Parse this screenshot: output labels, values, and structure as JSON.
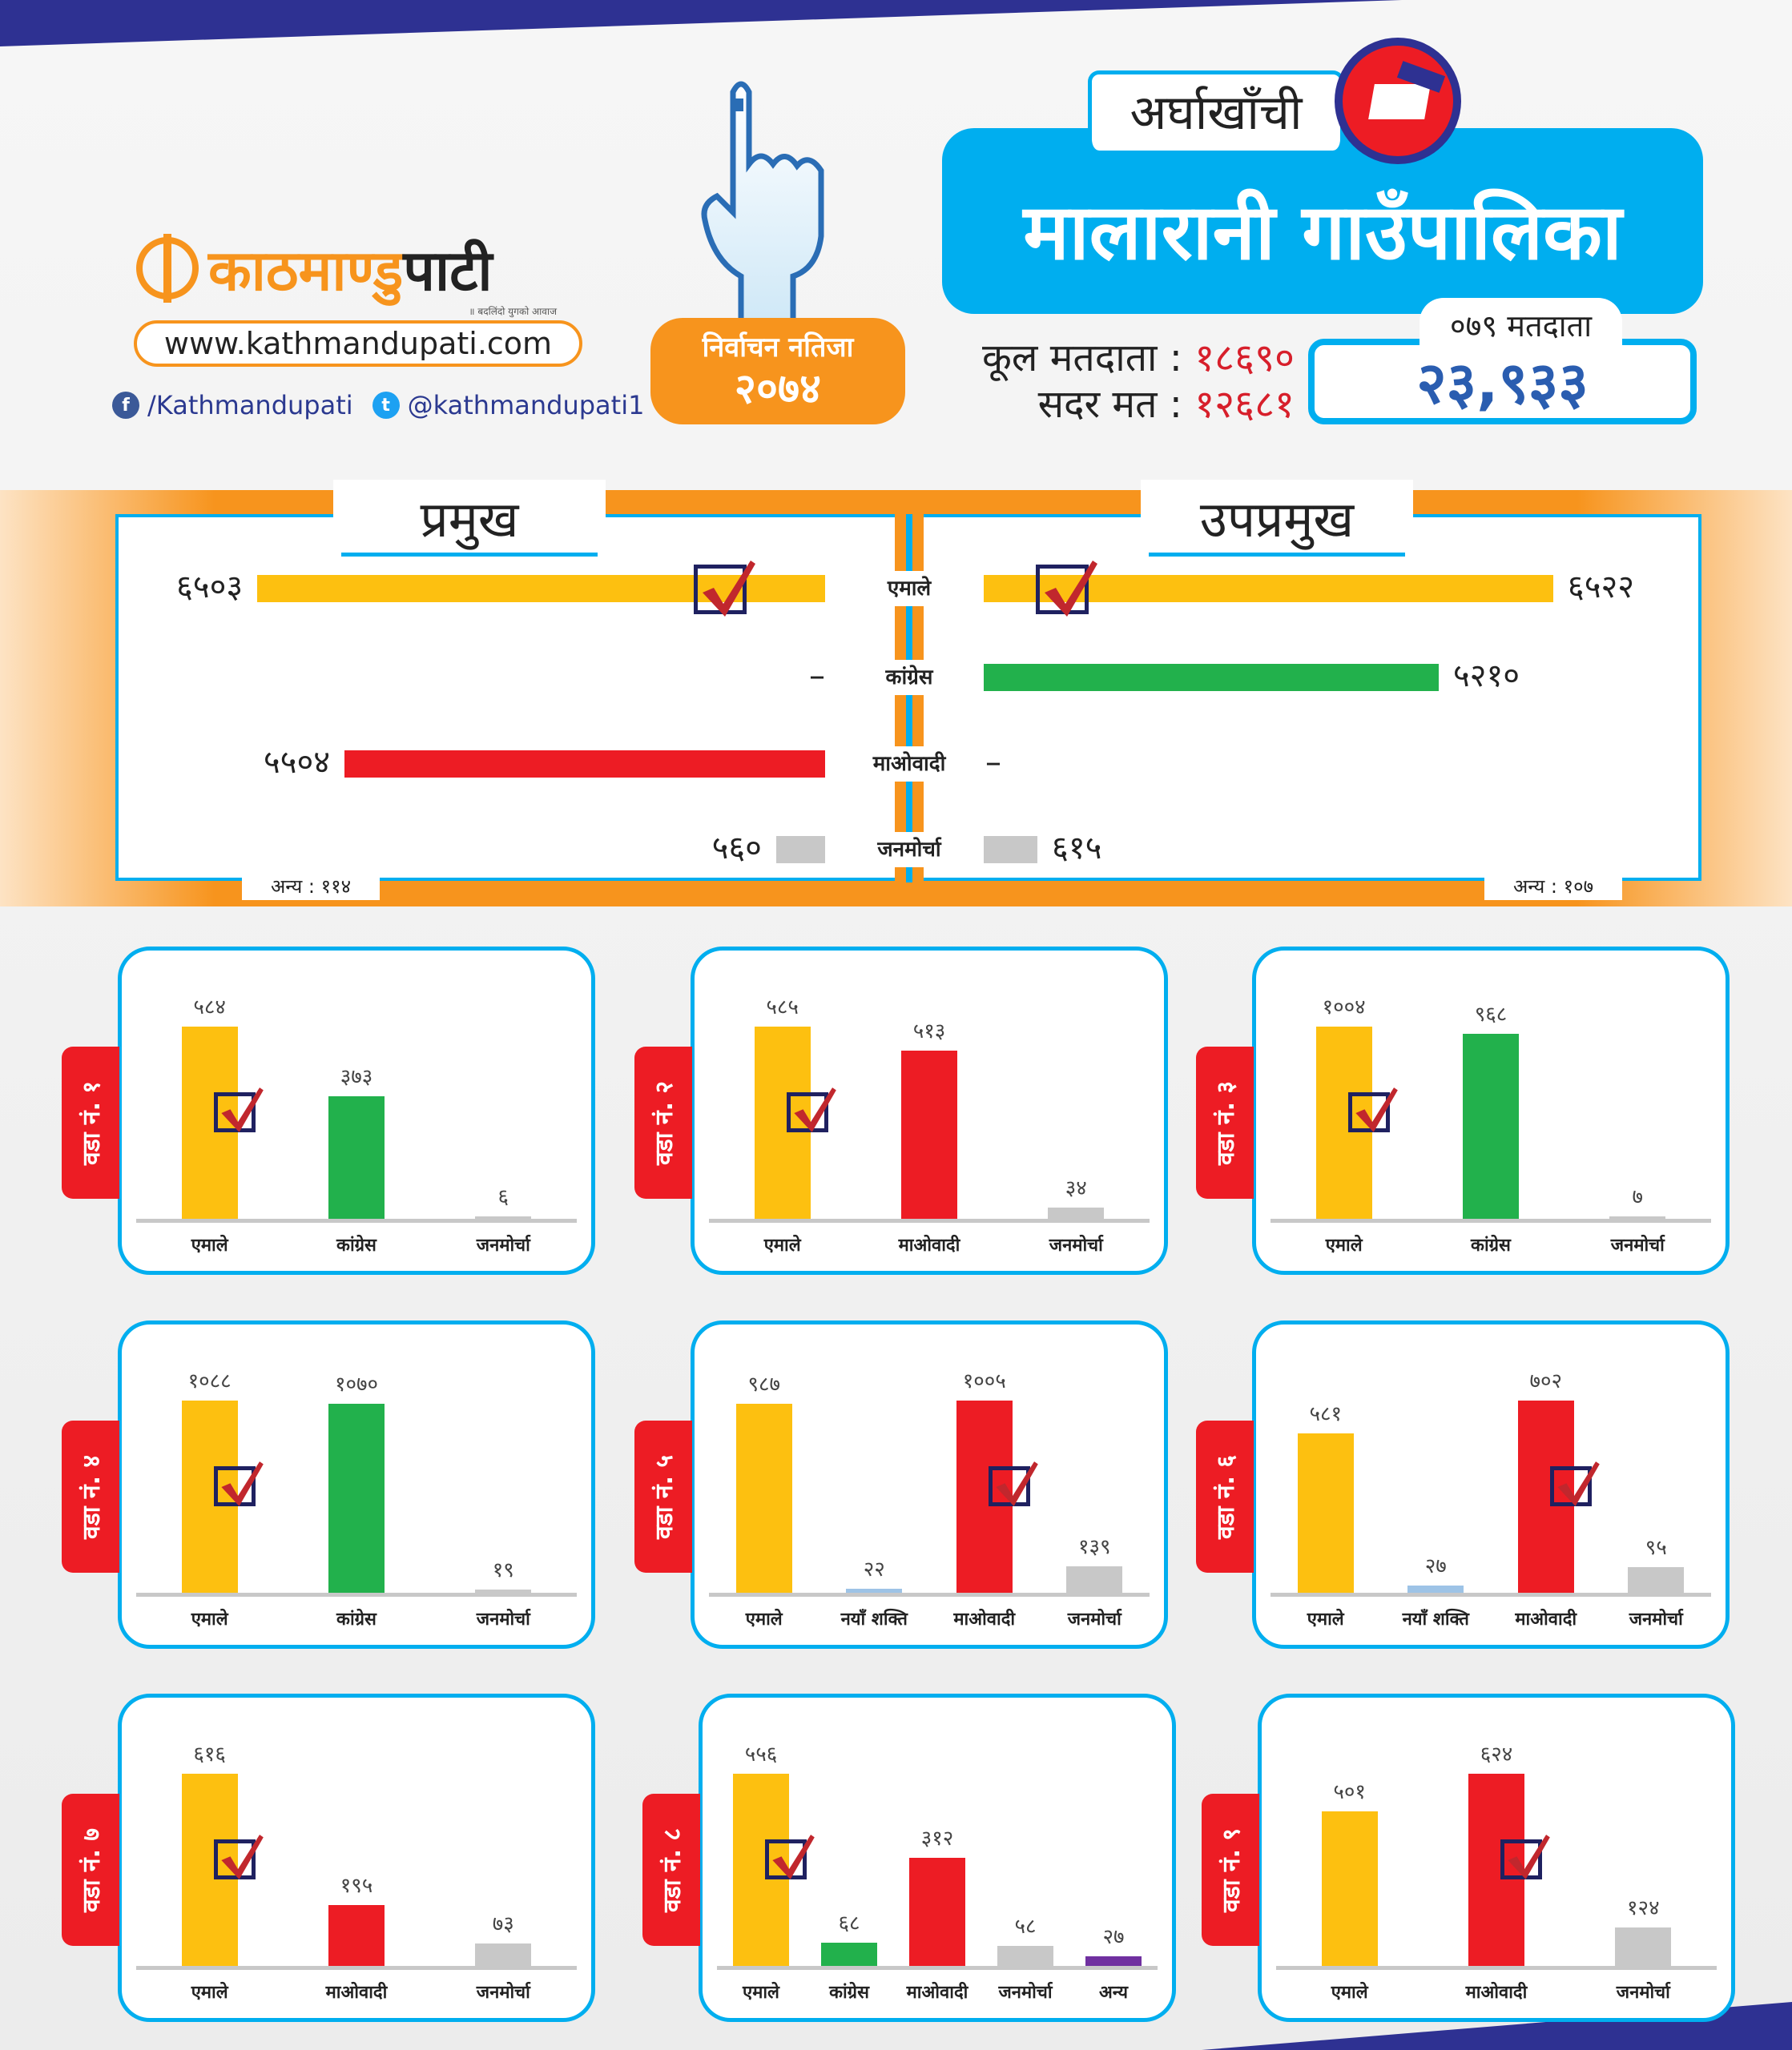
{
  "header": {
    "district": "अर्घाखाँची",
    "municipality": "मालारानी गाउँपालिका",
    "brand_part1": "काठमाण्डु",
    "brand_part2": "पाटी",
    "brand_tagline": "॥ बदलिंदो युगको आवाज",
    "website": "www.kathmandupati.com",
    "facebook": "/Kathmandupati",
    "twitter": "@kathmandupati1",
    "badge_line1": "निर्वाचन नतिजा",
    "badge_line2": "२०७४",
    "total_voters_label": "कूल मतदाता :",
    "total_voters": "१८६९०",
    "valid_votes_label": "सदर मत :",
    "valid_votes": "१२६८१",
    "voters_079_label": "०७९ मतदाता",
    "voters_079": "२३,९३३"
  },
  "colors": {
    "एमाले": "#fdc010",
    "कांग्रेस": "#22b14c",
    "माओवादी": "#ed1c24",
    "जनमोर्चा": "#c8c8c8",
    "नयाँ शक्ति": "#9dc3e6",
    "अन्य": "#7030a0",
    "accent": "#00aeef",
    "orange": "#f7941d"
  },
  "chart_data": [
    {
      "type": "bar",
      "title": "प्रमुख",
      "categories": [
        "एमाले",
        "कांग्रेस",
        "माओवादी",
        "जनमोर्चा"
      ],
      "values": [
        6503,
        null,
        5504,
        560
      ],
      "labels": [
        "६५०३",
        "–",
        "५५०४",
        "५६०"
      ],
      "winner": "एमाले",
      "other_label": "अन्य : ११४",
      "other_value": 114
    },
    {
      "type": "bar",
      "title": "उपप्रमुख",
      "categories": [
        "एमाले",
        "कांग्रेस",
        "माओवादी",
        "जनमोर्चा"
      ],
      "values": [
        6522,
        5210,
        null,
        615
      ],
      "labels": [
        "६५२२",
        "५२१०",
        "–",
        "६१५"
      ],
      "winner": "एमाले",
      "other_label": "अन्य : १०७",
      "other_value": 107
    },
    {
      "type": "bar",
      "title": "वडा नं. १",
      "categories": [
        "एमाले",
        "कांग्रेस",
        "जनमोर्चा"
      ],
      "values": [
        584,
        373,
        6
      ],
      "labels": [
        "५८४",
        "३७३",
        "६"
      ],
      "winner": "एमाले"
    },
    {
      "type": "bar",
      "title": "वडा नं. २",
      "categories": [
        "एमाले",
        "माओवादी",
        "जनमोर्चा"
      ],
      "values": [
        585,
        513,
        34
      ],
      "labels": [
        "५८५",
        "५१३",
        "३४"
      ],
      "winner": "एमाले"
    },
    {
      "type": "bar",
      "title": "वडा नं. ३",
      "categories": [
        "एमाले",
        "कांग्रेस",
        "जनमोर्चा"
      ],
      "values": [
        1004,
        968,
        7
      ],
      "labels": [
        "१००४",
        "९६८",
        "७"
      ],
      "winner": "एमाले"
    },
    {
      "type": "bar",
      "title": "वडा नं. ४",
      "categories": [
        "एमाले",
        "कांग्रेस",
        "जनमोर्चा"
      ],
      "values": [
        1088,
        1070,
        19
      ],
      "labels": [
        "१०८८",
        "१०७०",
        "१९"
      ],
      "winner": "एमाले"
    },
    {
      "type": "bar",
      "title": "वडा नं. ५",
      "categories": [
        "एमाले",
        "नयाँ शक्ति",
        "माओवादी",
        "जनमोर्चा"
      ],
      "values": [
        987,
        22,
        1005,
        139
      ],
      "labels": [
        "९८७",
        "२२",
        "१००५",
        "१३९"
      ],
      "winner": "माओवादी"
    },
    {
      "type": "bar",
      "title": "वडा नं. ६",
      "categories": [
        "एमाले",
        "नयाँ शक्ति",
        "माओवादी",
        "जनमोर्चा"
      ],
      "values": [
        581,
        27,
        702,
        95
      ],
      "labels": [
        "५८१",
        "२७",
        "७०२",
        "९५"
      ],
      "winner": "माओवादी"
    },
    {
      "type": "bar",
      "title": "वडा नं. ७",
      "categories": [
        "एमाले",
        "माओवादी",
        "जनमोर्चा"
      ],
      "values": [
        616,
        195,
        73
      ],
      "labels": [
        "६१६",
        "१९५",
        "७३"
      ],
      "winner": "एमाले"
    },
    {
      "type": "bar",
      "title": "वडा नं. ८",
      "categories": [
        "एमाले",
        "कांग्रेस",
        "माओवादी",
        "जनमोर्चा",
        "अन्य"
      ],
      "values": [
        556,
        68,
        312,
        58,
        27
      ],
      "labels": [
        "५५६",
        "६८",
        "३१२",
        "५८",
        "२७"
      ],
      "winner": "एमाले"
    },
    {
      "type": "bar",
      "title": "वडा नं. ९",
      "categories": [
        "एमाले",
        "माओवादी",
        "जनमोर्चा"
      ],
      "values": [
        501,
        624,
        124
      ],
      "labels": [
        "५०१",
        "६२४",
        "१२४"
      ],
      "winner": "माओवादी"
    }
  ]
}
